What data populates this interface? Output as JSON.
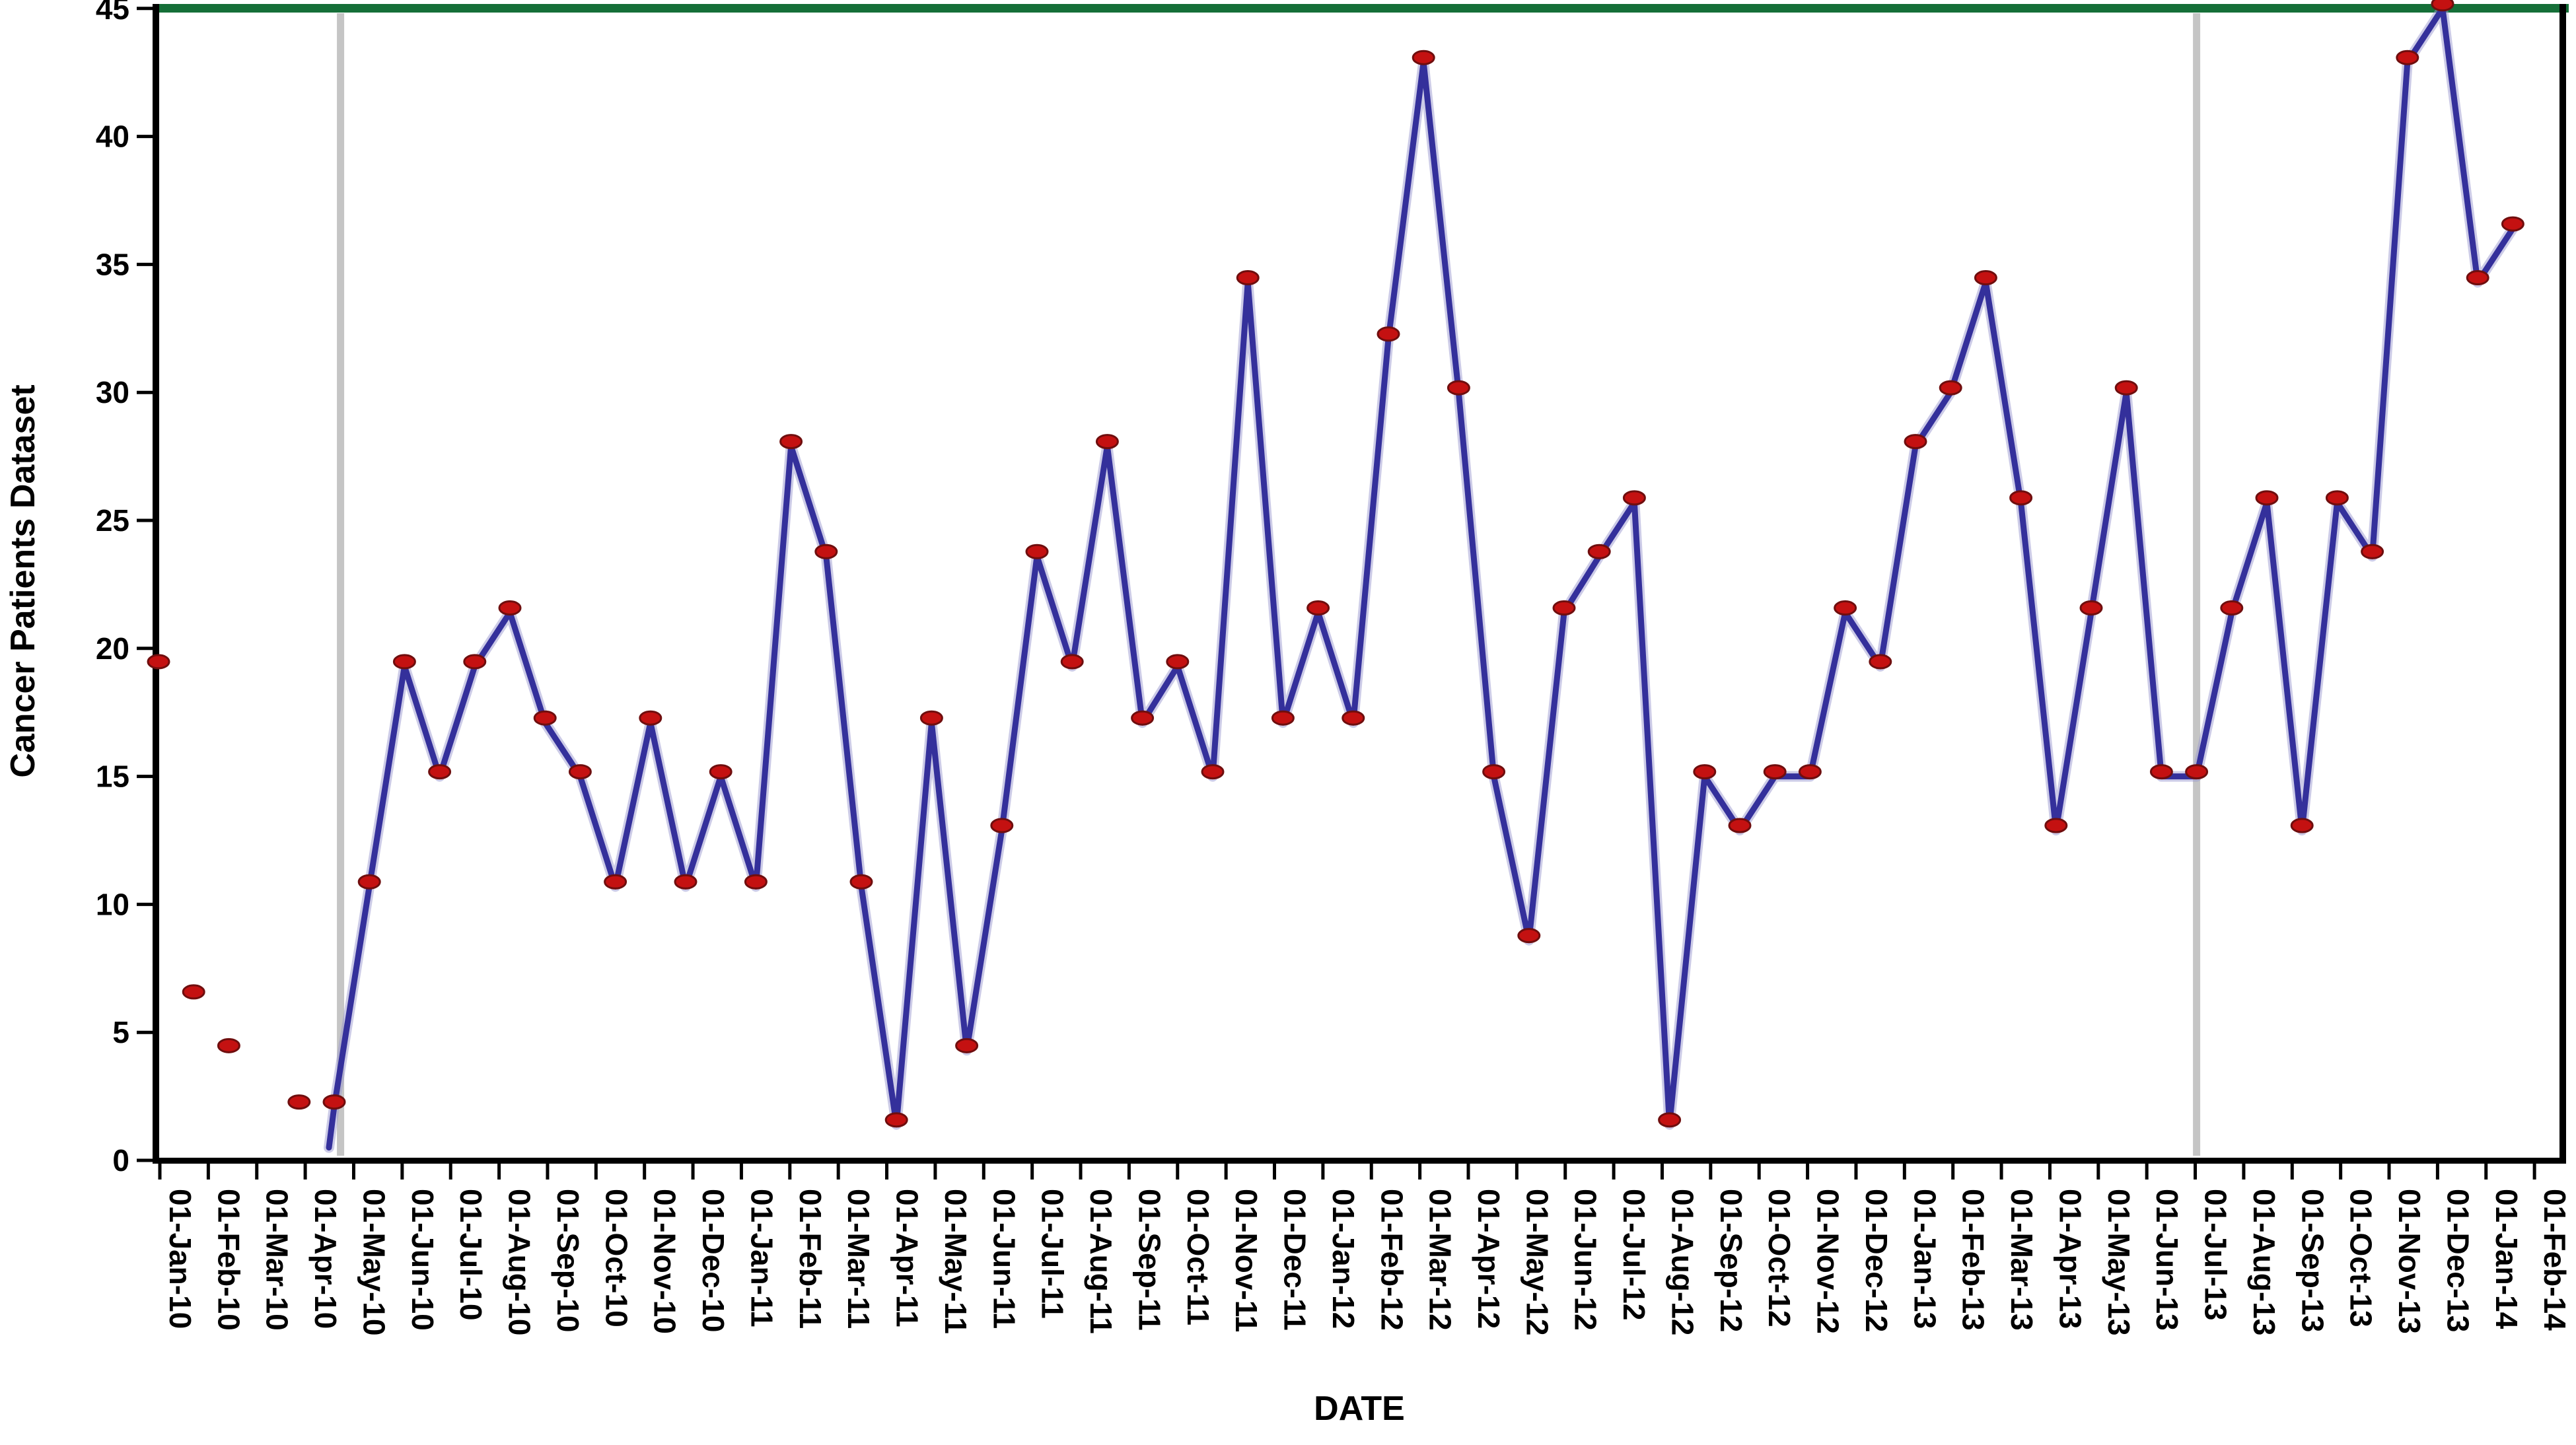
{
  "figure": {
    "ylabel": "Cancer Patients Dataset",
    "xlabel": "DATE"
  },
  "chart_data": {
    "type": "line",
    "title": "",
    "xlabel": "DATE",
    "ylabel": "Cancer Patients Dataset",
    "ylim": [
      0,
      45
    ],
    "yticks": [
      0,
      5,
      10,
      15,
      20,
      25,
      30,
      35,
      40,
      45
    ],
    "grid": false,
    "legend": "none",
    "x_tick_labels": [
      "01-Jan-10",
      "01-Feb-10",
      "01-Mar-10",
      "01-Apr-10",
      "01-May-10",
      "01-Jun-10",
      "01-Jul-10",
      "01-Aug-10",
      "01-Sep-10",
      "01-Oct-10",
      "01-Nov-10",
      "01-Dec-10",
      "01-Jan-11",
      "01-Feb-11",
      "01-Mar-11",
      "01-Apr-11",
      "01-May-11",
      "01-Jun-11",
      "01-Jul-11",
      "01-Aug-11",
      "01-Sep-11",
      "01-Oct-11",
      "01-Nov-11",
      "01-Dec-11",
      "01-Jan-12",
      "01-Feb-12",
      "01-Mar-12",
      "01-Apr-12",
      "01-May-12",
      "01-Jun-12",
      "01-Jul-12",
      "01-Aug-12",
      "01-Sep-12",
      "01-Oct-12",
      "01-Nov-12",
      "01-Dec-12",
      "01-Jan-13",
      "01-Feb-13",
      "01-Mar-13",
      "01-Apr-13",
      "01-May-13",
      "01-Jun-13",
      "01-Jul-13",
      "01-Aug-13",
      "01-Sep-13",
      "01-Oct-13",
      "01-Nov-13",
      "01-Dec-13",
      "01-Jan-14",
      "01-Feb-14"
    ],
    "series": [
      {
        "name": "observed-patients-markers",
        "style": "markers",
        "color": "#c41111",
        "marker_edge": "#6f0e0e",
        "note": "red data markers, uniformly spaced points spanning the axis; value unit = 45/21",
        "values": [
          19.3,
          6.4,
          4.3,
          null,
          2.1,
          2.1,
          10.7,
          19.3,
          15.0,
          19.3,
          21.4,
          17.1,
          15.0,
          10.7,
          17.1,
          10.7,
          15.0,
          10.7,
          27.9,
          23.6,
          10.7,
          1.4,
          17.1,
          4.3,
          12.9,
          23.6,
          19.3,
          27.9,
          17.1,
          19.3,
          15.0,
          34.3,
          17.1,
          21.4,
          17.1,
          32.1,
          42.9,
          30.0,
          15.0,
          8.6,
          21.4,
          23.6,
          25.7,
          1.4,
          15.0,
          12.9,
          15.0,
          15.0,
          21.4,
          19.3,
          27.9,
          30.0,
          34.3,
          25.7,
          12.9,
          21.4,
          30.0,
          15.0,
          15.0,
          21.4,
          25.7,
          12.9,
          25.7,
          23.6,
          42.9,
          45.0,
          34.3,
          36.4
        ]
      },
      {
        "name": "fitted-line",
        "style": "line",
        "color": "#34309b",
        "halo_color": "#9a97cf",
        "start_index": 5,
        "line_start": {
          "index_frac": 4.85,
          "value": 0.5
        },
        "note": "navy line begins at first gray split line (~May-10) and follows the markers"
      }
    ],
    "annotations": {
      "vlines": [
        {
          "name": "train-split-line-1",
          "at_marker_index": 5.18,
          "label_between": "01-Apr-10 / 01-May-10",
          "color": "#c5c5c5"
        },
        {
          "name": "train-split-line-2",
          "at_marker_index": 58.0,
          "label_between": "01-Jul-13 / 01-Aug-13",
          "color": "#c5c5c5"
        }
      ],
      "top_border_color": "#156f38"
    },
    "colors": {
      "axis": "#000000",
      "background": "#ffffff",
      "line": "#34309b",
      "marker": "#c41111",
      "split_line": "#c5c5c5",
      "top_border": "#156f38"
    }
  }
}
